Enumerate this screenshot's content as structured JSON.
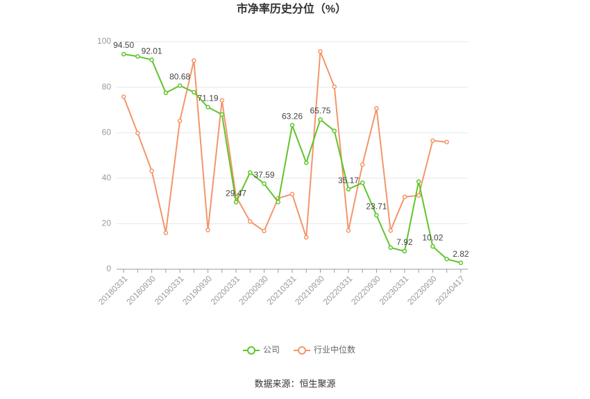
{
  "chart_data": {
    "type": "line",
    "title": "市净率历史分位（%）",
    "source": "数据来源：恒生聚源",
    "categories": [
      "20180331",
      null,
      "20180930",
      null,
      "20190331",
      null,
      "20190930",
      null,
      "20200331",
      null,
      "20200930",
      null,
      "20210331",
      null,
      "20210930",
      null,
      "20220331",
      null,
      "20220930",
      null,
      "20230331",
      null,
      "20230930",
      null,
      "20240417"
    ],
    "series": [
      {
        "name": "公司",
        "color": "#5ec42a",
        "values": [
          94.5,
          93.5,
          92.01,
          77.5,
          80.68,
          77.8,
          71.19,
          68.0,
          29.47,
          42.5,
          37.59,
          29.5,
          63.26,
          46.8,
          65.75,
          60.8,
          35.17,
          38.0,
          23.71,
          9.5,
          7.92,
          38.5,
          10.02,
          4.5,
          2.82
        ],
        "value_labels": [
          "94.50",
          null,
          "92.01",
          null,
          "80.68",
          null,
          "71.19",
          null,
          "29.47",
          null,
          "37.59",
          null,
          "63.26",
          null,
          "65.75",
          null,
          "35.17",
          null,
          "23.71",
          null,
          "7.92",
          null,
          "10.02",
          null,
          "2.82"
        ]
      },
      {
        "name": "行业中位数",
        "color": "#f4956a",
        "values": [
          75.8,
          59.8,
          43.2,
          16.0,
          65.2,
          91.7,
          17.2,
          74.2,
          32.0,
          21.0,
          16.8,
          31.2,
          33.0,
          14.0,
          95.7,
          80.2,
          17.0,
          46.0,
          70.7,
          17.0,
          31.8,
          32.4,
          56.5,
          55.9,
          null
        ]
      }
    ],
    "ylim": [
      0,
      100
    ],
    "yticks": [
      0,
      20,
      40,
      60,
      80,
      100
    ],
    "grid": true
  }
}
